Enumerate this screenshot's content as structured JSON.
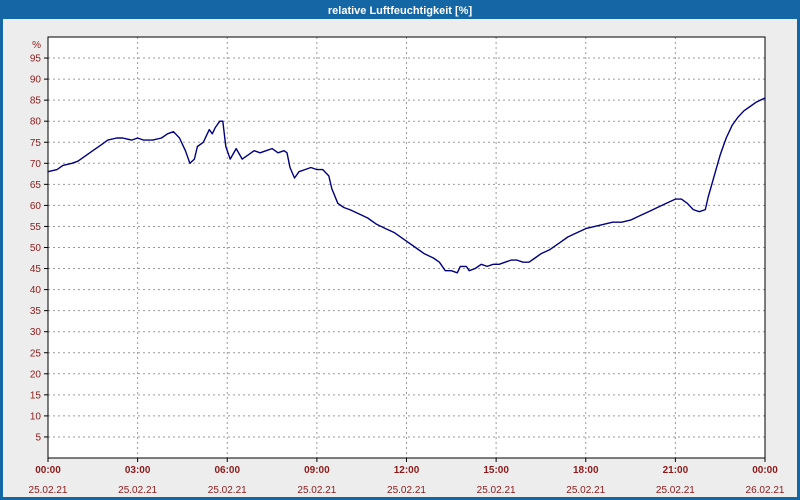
{
  "window": {
    "title": "relative Luftfeuchtigkeit [%]"
  },
  "colors": {
    "frame": "#1566a4",
    "titlebar_bg": "#1566a4",
    "title_text": "#ffffff",
    "window_bg": "#ededed",
    "plot_bg": "#ffffff",
    "grid": "#9a9a9a",
    "plot_border": "#000000",
    "axis_text": "#8b1a1a",
    "line": "#00007f"
  },
  "chart_data": {
    "type": "line",
    "title": "relative Luftfeuchtigkeit [%]",
    "xlabel": "",
    "ylabel": "%",
    "ylim": [
      0,
      100
    ],
    "x_range_hours": [
      0,
      24
    ],
    "grid": "dashed",
    "legend": "none",
    "y_ticks": [
      5,
      10,
      15,
      20,
      25,
      30,
      35,
      40,
      45,
      50,
      55,
      60,
      65,
      70,
      75,
      80,
      85,
      90,
      95
    ],
    "x_ticks": [
      {
        "hour": 0,
        "time": "00:00",
        "date": "25.02.21"
      },
      {
        "hour": 3,
        "time": "03:00",
        "date": "25.02.21"
      },
      {
        "hour": 6,
        "time": "06:00",
        "date": "25.02.21"
      },
      {
        "hour": 9,
        "time": "09:00",
        "date": "25.02.21"
      },
      {
        "hour": 12,
        "time": "12:00",
        "date": "25.02.21"
      },
      {
        "hour": 15,
        "time": "15:00",
        "date": "25.02.21"
      },
      {
        "hour": 18,
        "time": "18:00",
        "date": "25.02.21"
      },
      {
        "hour": 21,
        "time": "21:00",
        "date": "25.02.21"
      },
      {
        "hour": 24,
        "time": "00:00",
        "date": "26.02.21"
      }
    ],
    "series": [
      {
        "name": "relative Luftfeuchtigkeit",
        "color": "#00007f",
        "points": [
          [
            0.0,
            68
          ],
          [
            0.3,
            68.5
          ],
          [
            0.5,
            69.5
          ],
          [
            0.8,
            70
          ],
          [
            1.0,
            70.5
          ],
          [
            1.3,
            72
          ],
          [
            1.5,
            73
          ],
          [
            1.8,
            74.5
          ],
          [
            2.0,
            75.5
          ],
          [
            2.3,
            76
          ],
          [
            2.5,
            76
          ],
          [
            2.8,
            75.5
          ],
          [
            3.0,
            76
          ],
          [
            3.2,
            75.5
          ],
          [
            3.5,
            75.5
          ],
          [
            3.8,
            76
          ],
          [
            4.0,
            77
          ],
          [
            4.2,
            77.5
          ],
          [
            4.4,
            76
          ],
          [
            4.6,
            73
          ],
          [
            4.75,
            70
          ],
          [
            4.9,
            71
          ],
          [
            5.0,
            74
          ],
          [
            5.2,
            75
          ],
          [
            5.4,
            78
          ],
          [
            5.5,
            77
          ],
          [
            5.6,
            78.5
          ],
          [
            5.75,
            80
          ],
          [
            5.85,
            80
          ],
          [
            5.95,
            74
          ],
          [
            6.1,
            71
          ],
          [
            6.3,
            73.5
          ],
          [
            6.5,
            71
          ],
          [
            6.7,
            72
          ],
          [
            6.9,
            73
          ],
          [
            7.1,
            72.5
          ],
          [
            7.3,
            73
          ],
          [
            7.5,
            73.5
          ],
          [
            7.7,
            72.5
          ],
          [
            7.9,
            73
          ],
          [
            8.0,
            72.5
          ],
          [
            8.1,
            69
          ],
          [
            8.25,
            66.5
          ],
          [
            8.4,
            68
          ],
          [
            8.6,
            68.5
          ],
          [
            8.8,
            69
          ],
          [
            9.0,
            68.5
          ],
          [
            9.2,
            68.5
          ],
          [
            9.4,
            67
          ],
          [
            9.5,
            64
          ],
          [
            9.7,
            60.5
          ],
          [
            9.9,
            59.5
          ],
          [
            10.1,
            59
          ],
          [
            10.4,
            58
          ],
          [
            10.7,
            57
          ],
          [
            11.0,
            55.5
          ],
          [
            11.3,
            54.5
          ],
          [
            11.6,
            53.5
          ],
          [
            12.0,
            51.5
          ],
          [
            12.3,
            50
          ],
          [
            12.6,
            48.5
          ],
          [
            12.9,
            47.5
          ],
          [
            13.1,
            46.5
          ],
          [
            13.3,
            44.5
          ],
          [
            13.5,
            44.5
          ],
          [
            13.7,
            44
          ],
          [
            13.8,
            45.5
          ],
          [
            14.0,
            45.5
          ],
          [
            14.1,
            44.5
          ],
          [
            14.3,
            45
          ],
          [
            14.5,
            46
          ],
          [
            14.7,
            45.5
          ],
          [
            14.9,
            46
          ],
          [
            15.1,
            46
          ],
          [
            15.3,
            46.5
          ],
          [
            15.5,
            47
          ],
          [
            15.7,
            47
          ],
          [
            15.9,
            46.5
          ],
          [
            16.1,
            46.5
          ],
          [
            16.3,
            47.5
          ],
          [
            16.5,
            48.5
          ],
          [
            16.8,
            49.5
          ],
          [
            17.1,
            51
          ],
          [
            17.4,
            52.5
          ],
          [
            17.7,
            53.5
          ],
          [
            18.0,
            54.5
          ],
          [
            18.3,
            55
          ],
          [
            18.6,
            55.5
          ],
          [
            18.9,
            56
          ],
          [
            19.2,
            56
          ],
          [
            19.5,
            56.5
          ],
          [
            19.8,
            57.5
          ],
          [
            20.1,
            58.5
          ],
          [
            20.4,
            59.5
          ],
          [
            20.7,
            60.5
          ],
          [
            21.0,
            61.5
          ],
          [
            21.2,
            61.5
          ],
          [
            21.4,
            60.5
          ],
          [
            21.6,
            59
          ],
          [
            21.8,
            58.5
          ],
          [
            22.0,
            59
          ],
          [
            22.1,
            62
          ],
          [
            22.3,
            67
          ],
          [
            22.5,
            72
          ],
          [
            22.7,
            76
          ],
          [
            22.9,
            79
          ],
          [
            23.1,
            81
          ],
          [
            23.3,
            82.5
          ],
          [
            23.5,
            83.5
          ],
          [
            23.7,
            84.5
          ],
          [
            24.0,
            85.5
          ]
        ]
      }
    ]
  }
}
